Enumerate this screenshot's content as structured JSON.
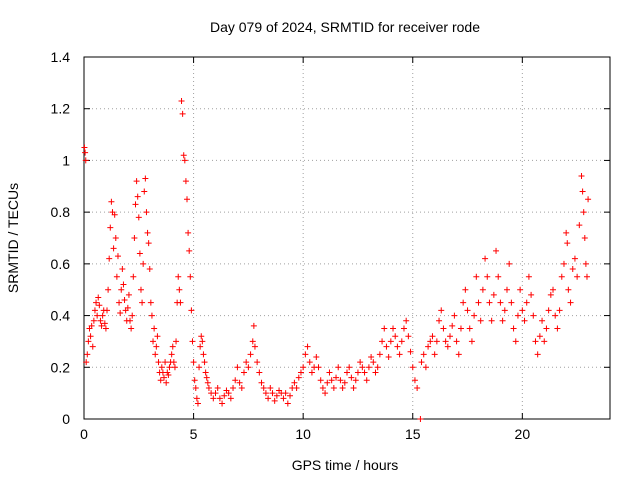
{
  "chart_data": {
    "type": "scatter",
    "title": "Day 079 of 2024, SRMTID for receiver rode",
    "xlabel": "GPS time / hours",
    "ylabel": "SRMTID / TECUs",
    "xlim": [
      0,
      24
    ],
    "ylim": [
      0,
      1.4
    ],
    "xticks": [
      0,
      5,
      10,
      15,
      20
    ],
    "xtick_labels": [
      "0",
      "5",
      "10",
      "15",
      "20"
    ],
    "yticks": [
      0,
      0.2,
      0.4,
      0.6,
      0.8,
      1.0,
      1.2,
      1.4
    ],
    "ytick_labels": [
      "0",
      "0.2",
      "0.4",
      "0.6",
      "0.8",
      "1",
      "1.2",
      "1.4"
    ],
    "grid": true,
    "marker": "+",
    "marker_color": "#ff0000",
    "series": [
      {
        "name": "SRMTID",
        "points": [
          [
            0.02,
            1.05
          ],
          [
            0.05,
            1.03
          ],
          [
            0.08,
            1.0
          ],
          [
            0.1,
            0.22
          ],
          [
            0.15,
            0.25
          ],
          [
            0.2,
            0.3
          ],
          [
            0.25,
            0.35
          ],
          [
            0.3,
            0.32
          ],
          [
            0.35,
            0.36
          ],
          [
            0.4,
            0.28
          ],
          [
            0.45,
            0.38
          ],
          [
            0.5,
            0.42
          ],
          [
            0.55,
            0.45
          ],
          [
            0.6,
            0.4
          ],
          [
            0.65,
            0.47
          ],
          [
            0.7,
            0.44
          ],
          [
            0.75,
            0.38
          ],
          [
            0.8,
            0.36
          ],
          [
            0.85,
            0.4
          ],
          [
            0.9,
            0.42
          ],
          [
            0.95,
            0.37
          ],
          [
            1.0,
            0.35
          ],
          [
            1.05,
            0.42
          ],
          [
            1.1,
            0.5
          ],
          [
            1.15,
            0.62
          ],
          [
            1.2,
            0.74
          ],
          [
            1.25,
            0.84
          ],
          [
            1.3,
            0.8
          ],
          [
            1.35,
            0.66
          ],
          [
            1.4,
            0.79
          ],
          [
            1.45,
            0.7
          ],
          [
            1.5,
            0.55
          ],
          [
            1.55,
            0.63
          ],
          [
            1.6,
            0.45
          ],
          [
            1.65,
            0.41
          ],
          [
            1.7,
            0.5
          ],
          [
            1.75,
            0.58
          ],
          [
            1.8,
            0.52
          ],
          [
            1.85,
            0.46
          ],
          [
            1.9,
            0.42
          ],
          [
            1.95,
            0.38
          ],
          [
            2.0,
            0.43
          ],
          [
            2.05,
            0.48
          ],
          [
            2.1,
            0.38
          ],
          [
            2.15,
            0.35
          ],
          [
            2.2,
            0.4
          ],
          [
            2.25,
            0.55
          ],
          [
            2.3,
            0.7
          ],
          [
            2.35,
            0.83
          ],
          [
            2.4,
            0.92
          ],
          [
            2.45,
            0.86
          ],
          [
            2.5,
            0.78
          ],
          [
            2.55,
            0.64
          ],
          [
            2.6,
            0.5
          ],
          [
            2.65,
            0.45
          ],
          [
            2.7,
            0.6
          ],
          [
            2.75,
            0.88
          ],
          [
            2.8,
            0.93
          ],
          [
            2.85,
            0.8
          ],
          [
            2.9,
            0.72
          ],
          [
            2.95,
            0.68
          ],
          [
            3.0,
            0.58
          ],
          [
            3.05,
            0.45
          ],
          [
            3.1,
            0.4
          ],
          [
            3.15,
            0.3
          ],
          [
            3.2,
            0.35
          ],
          [
            3.25,
            0.25
          ],
          [
            3.3,
            0.28
          ],
          [
            3.35,
            0.32
          ],
          [
            3.4,
            0.22
          ],
          [
            3.45,
            0.18
          ],
          [
            3.5,
            0.15
          ],
          [
            3.55,
            0.2
          ],
          [
            3.6,
            0.18
          ],
          [
            3.65,
            0.16
          ],
          [
            3.7,
            0.22
          ],
          [
            3.75,
            0.14
          ],
          [
            3.8,
            0.18
          ],
          [
            3.85,
            0.17
          ],
          [
            3.9,
            0.2
          ],
          [
            3.95,
            0.22
          ],
          [
            4.0,
            0.25
          ],
          [
            4.05,
            0.28
          ],
          [
            4.1,
            0.22
          ],
          [
            4.15,
            0.2
          ],
          [
            4.2,
            0.3
          ],
          [
            4.25,
            0.45
          ],
          [
            4.3,
            0.55
          ],
          [
            4.35,
            0.5
          ],
          [
            4.4,
            0.45
          ],
          [
            4.45,
            1.23
          ],
          [
            4.5,
            1.18
          ],
          [
            4.55,
            1.02
          ],
          [
            4.6,
            1.0
          ],
          [
            4.65,
            0.92
          ],
          [
            4.7,
            0.85
          ],
          [
            4.75,
            0.72
          ],
          [
            4.8,
            0.65
          ],
          [
            4.85,
            0.55
          ],
          [
            4.9,
            0.42
          ],
          [
            4.95,
            0.3
          ],
          [
            5.0,
            0.22
          ],
          [
            5.05,
            0.15
          ],
          [
            5.1,
            0.12
          ],
          [
            5.15,
            0.08
          ],
          [
            5.2,
            0.06
          ],
          [
            5.25,
            0.2
          ],
          [
            5.3,
            0.28
          ],
          [
            5.35,
            0.32
          ],
          [
            5.4,
            0.3
          ],
          [
            5.45,
            0.25
          ],
          [
            5.5,
            0.22
          ],
          [
            5.55,
            0.18
          ],
          [
            5.6,
            0.16
          ],
          [
            5.65,
            0.14
          ],
          [
            5.7,
            0.12
          ],
          [
            5.8,
            0.1
          ],
          [
            5.9,
            0.08
          ],
          [
            6.0,
            0.1
          ],
          [
            6.1,
            0.12
          ],
          [
            6.2,
            0.08
          ],
          [
            6.3,
            0.06
          ],
          [
            6.4,
            0.09
          ],
          [
            6.5,
            0.11
          ],
          [
            6.6,
            0.1
          ],
          [
            6.7,
            0.08
          ],
          [
            6.8,
            0.12
          ],
          [
            6.9,
            0.15
          ],
          [
            7.0,
            0.2
          ],
          [
            7.1,
            0.14
          ],
          [
            7.2,
            0.12
          ],
          [
            7.3,
            0.18
          ],
          [
            7.4,
            0.22
          ],
          [
            7.5,
            0.2
          ],
          [
            7.6,
            0.25
          ],
          [
            7.7,
            0.3
          ],
          [
            7.75,
            0.36
          ],
          [
            7.8,
            0.28
          ],
          [
            7.9,
            0.22
          ],
          [
            8.0,
            0.18
          ],
          [
            8.1,
            0.14
          ],
          [
            8.2,
            0.12
          ],
          [
            8.3,
            0.1
          ],
          [
            8.4,
            0.08
          ],
          [
            8.5,
            0.12
          ],
          [
            8.6,
            0.1
          ],
          [
            8.7,
            0.07
          ],
          [
            8.8,
            0.09
          ],
          [
            8.9,
            0.11
          ],
          [
            9.0,
            0.1
          ],
          [
            9.1,
            0.08
          ],
          [
            9.2,
            0.1
          ],
          [
            9.3,
            0.06
          ],
          [
            9.4,
            0.09
          ],
          [
            9.5,
            0.12
          ],
          [
            9.6,
            0.14
          ],
          [
            9.7,
            0.12
          ],
          [
            9.8,
            0.16
          ],
          [
            9.9,
            0.18
          ],
          [
            10.0,
            0.2
          ],
          [
            10.1,
            0.25
          ],
          [
            10.2,
            0.28
          ],
          [
            10.3,
            0.22
          ],
          [
            10.4,
            0.18
          ],
          [
            10.5,
            0.2
          ],
          [
            10.6,
            0.24
          ],
          [
            10.7,
            0.2
          ],
          [
            10.8,
            0.15
          ],
          [
            10.9,
            0.12
          ],
          [
            11.0,
            0.1
          ],
          [
            11.1,
            0.14
          ],
          [
            11.2,
            0.18
          ],
          [
            11.3,
            0.15
          ],
          [
            11.4,
            0.12
          ],
          [
            11.5,
            0.16
          ],
          [
            11.6,
            0.2
          ],
          [
            11.7,
            0.15
          ],
          [
            11.8,
            0.12
          ],
          [
            11.9,
            0.14
          ],
          [
            12.0,
            0.18
          ],
          [
            12.1,
            0.2
          ],
          [
            12.2,
            0.16
          ],
          [
            12.3,
            0.12
          ],
          [
            12.4,
            0.15
          ],
          [
            12.5,
            0.18
          ],
          [
            12.6,
            0.22
          ],
          [
            12.7,
            0.2
          ],
          [
            12.8,
            0.18
          ],
          [
            12.9,
            0.15
          ],
          [
            13.0,
            0.2
          ],
          [
            13.1,
            0.24
          ],
          [
            13.2,
            0.22
          ],
          [
            13.3,
            0.18
          ],
          [
            13.4,
            0.2
          ],
          [
            13.5,
            0.25
          ],
          [
            13.6,
            0.3
          ],
          [
            13.7,
            0.35
          ],
          [
            13.8,
            0.28
          ],
          [
            13.9,
            0.24
          ],
          [
            14.0,
            0.3
          ],
          [
            14.1,
            0.35
          ],
          [
            14.2,
            0.32
          ],
          [
            14.3,
            0.28
          ],
          [
            14.4,
            0.25
          ],
          [
            14.5,
            0.3
          ],
          [
            14.6,
            0.35
          ],
          [
            14.7,
            0.38
          ],
          [
            14.8,
            0.32
          ],
          [
            14.9,
            0.26
          ],
          [
            15.0,
            0.2
          ],
          [
            15.1,
            0.15
          ],
          [
            15.2,
            0.12
          ],
          [
            15.35,
            0.0
          ],
          [
            15.4,
            0.22
          ],
          [
            15.5,
            0.25
          ],
          [
            15.6,
            0.2
          ],
          [
            15.7,
            0.28
          ],
          [
            15.8,
            0.3
          ],
          [
            15.9,
            0.32
          ],
          [
            16.0,
            0.25
          ],
          [
            16.1,
            0.3
          ],
          [
            16.2,
            0.38
          ],
          [
            16.3,
            0.42
          ],
          [
            16.4,
            0.35
          ],
          [
            16.5,
            0.3
          ],
          [
            16.6,
            0.28
          ],
          [
            16.7,
            0.32
          ],
          [
            16.8,
            0.36
          ],
          [
            16.9,
            0.4
          ],
          [
            17.0,
            0.3
          ],
          [
            17.1,
            0.25
          ],
          [
            17.2,
            0.35
          ],
          [
            17.3,
            0.45
          ],
          [
            17.4,
            0.5
          ],
          [
            17.5,
            0.42
          ],
          [
            17.6,
            0.35
          ],
          [
            17.7,
            0.3
          ],
          [
            17.8,
            0.4
          ],
          [
            17.9,
            0.55
          ],
          [
            18.0,
            0.45
          ],
          [
            18.1,
            0.38
          ],
          [
            18.2,
            0.5
          ],
          [
            18.3,
            0.62
          ],
          [
            18.4,
            0.55
          ],
          [
            18.5,
            0.45
          ],
          [
            18.6,
            0.38
          ],
          [
            18.7,
            0.48
          ],
          [
            18.8,
            0.65
          ],
          [
            18.9,
            0.55
          ],
          [
            19.0,
            0.45
          ],
          [
            19.1,
            0.38
          ],
          [
            19.2,
            0.42
          ],
          [
            19.3,
            0.5
          ],
          [
            19.4,
            0.6
          ],
          [
            19.5,
            0.45
          ],
          [
            19.6,
            0.35
          ],
          [
            19.7,
            0.3
          ],
          [
            19.8,
            0.4
          ],
          [
            19.9,
            0.5
          ],
          [
            20.0,
            0.42
          ],
          [
            20.1,
            0.38
          ],
          [
            20.2,
            0.45
          ],
          [
            20.3,
            0.55
          ],
          [
            20.4,
            0.48
          ],
          [
            20.5,
            0.4
          ],
          [
            20.6,
            0.3
          ],
          [
            20.7,
            0.25
          ],
          [
            20.8,
            0.32
          ],
          [
            20.9,
            0.38
          ],
          [
            21.0,
            0.3
          ],
          [
            21.1,
            0.35
          ],
          [
            21.2,
            0.42
          ],
          [
            21.3,
            0.48
          ],
          [
            21.4,
            0.5
          ],
          [
            21.5,
            0.4
          ],
          [
            21.6,
            0.35
          ],
          [
            21.7,
            0.42
          ],
          [
            21.8,
            0.55
          ],
          [
            21.9,
            0.6
          ],
          [
            22.0,
            0.72
          ],
          [
            22.05,
            0.68
          ],
          [
            22.1,
            0.5
          ],
          [
            22.2,
            0.45
          ],
          [
            22.3,
            0.58
          ],
          [
            22.4,
            0.62
          ],
          [
            22.5,
            0.55
          ],
          [
            22.6,
            0.75
          ],
          [
            22.7,
            0.94
          ],
          [
            22.75,
            0.88
          ],
          [
            22.8,
            0.8
          ],
          [
            22.85,
            0.7
          ],
          [
            22.9,
            0.6
          ],
          [
            22.95,
            0.55
          ],
          [
            23.0,
            0.85
          ]
        ]
      }
    ]
  }
}
